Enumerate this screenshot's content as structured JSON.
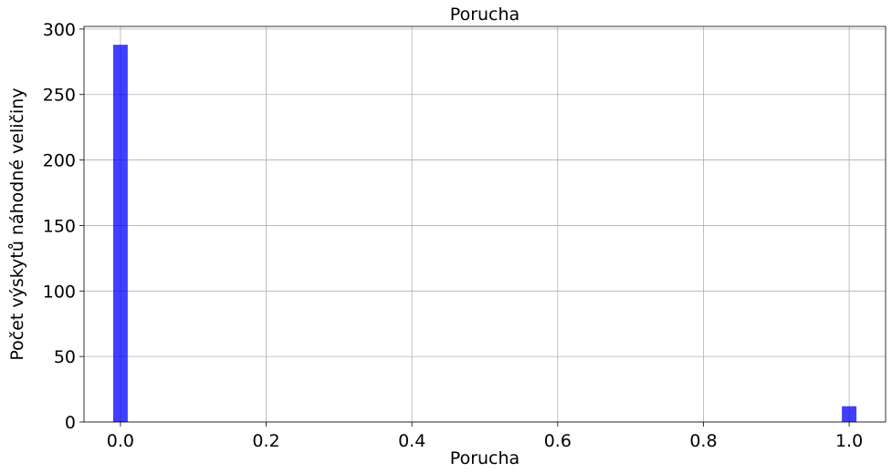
{
  "chart_data": {
    "type": "bar",
    "title": "Porucha",
    "xlabel": "Porucha",
    "ylabel": "Počet výskytů náhodné veličiny",
    "bins": [
      {
        "x": 0.0,
        "value": 288
      },
      {
        "x": 1.0,
        "value": 12
      }
    ],
    "bin_width": 0.02,
    "xlim": [
      -0.05,
      1.05
    ],
    "ylim": [
      0,
      302
    ],
    "xticks": [
      0.0,
      0.2,
      0.4,
      0.6,
      0.8,
      1.0
    ],
    "xtick_labels": [
      "0.0",
      "0.2",
      "0.4",
      "0.6",
      "0.8",
      "1.0"
    ],
    "yticks": [
      0,
      50,
      100,
      150,
      200,
      250,
      300
    ],
    "ytick_labels": [
      "0",
      "50",
      "100",
      "150",
      "200",
      "250",
      "300"
    ],
    "grid": true,
    "bar_color": "#0000ff",
    "bar_opacity": 0.75
  }
}
